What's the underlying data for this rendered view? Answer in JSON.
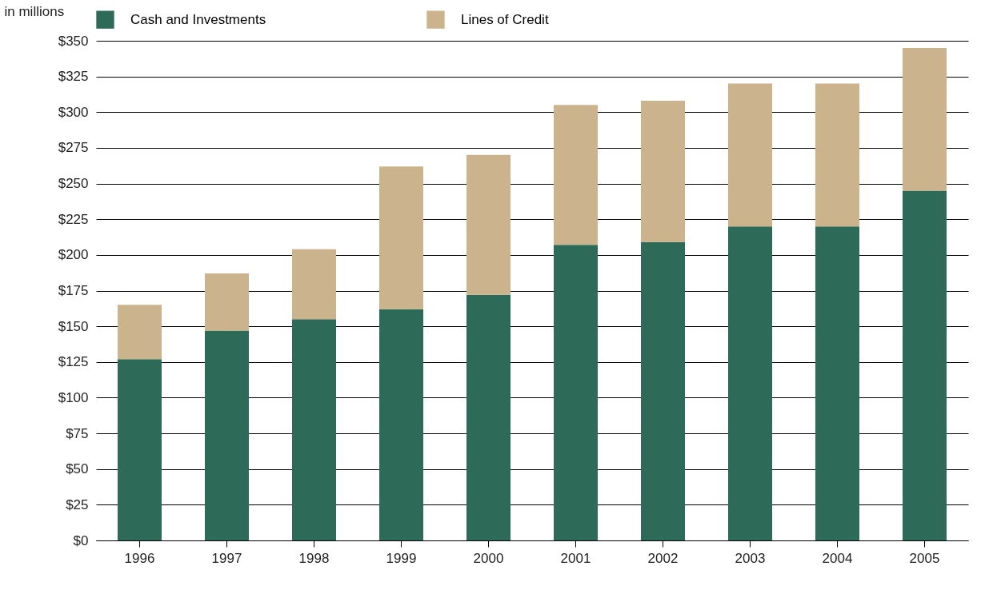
{
  "chart_data": {
    "type": "bar",
    "stacked": true,
    "ylabel": "in millions",
    "categories": [
      "1996",
      "1997",
      "1998",
      "1999",
      "2000",
      "2001",
      "2002",
      "2003",
      "2004",
      "2005"
    ],
    "series": [
      {
        "name": "Cash and Investments",
        "color": "#2e6a58",
        "values": [
          127,
          147,
          155,
          162,
          172,
          207,
          209,
          220,
          220,
          245
        ]
      },
      {
        "name": "Lines of Credit",
        "color": "#cbb38e",
        "values": [
          38,
          40,
          49,
          100,
          98,
          98,
          99,
          100,
          100,
          100
        ]
      }
    ],
    "ylim": [
      0,
      350
    ],
    "yticks": [
      {
        "value": 0,
        "label": "$0"
      },
      {
        "value": 25,
        "label": "$25"
      },
      {
        "value": 50,
        "label": "$50"
      },
      {
        "value": 75,
        "label": "$75"
      },
      {
        "value": 100,
        "label": "$100"
      },
      {
        "value": 125,
        "label": "$125"
      },
      {
        "value": 150,
        "label": "$150"
      },
      {
        "value": 175,
        "label": "$175"
      },
      {
        "value": 200,
        "label": "$200"
      },
      {
        "value": 225,
        "label": "$225"
      },
      {
        "value": 250,
        "label": "$250"
      },
      {
        "value": 275,
        "label": "$275"
      },
      {
        "value": 300,
        "label": "$300"
      },
      {
        "value": 325,
        "label": "$325"
      },
      {
        "value": 350,
        "label": "$350"
      }
    ],
    "grid": "y",
    "legend": "top left"
  }
}
